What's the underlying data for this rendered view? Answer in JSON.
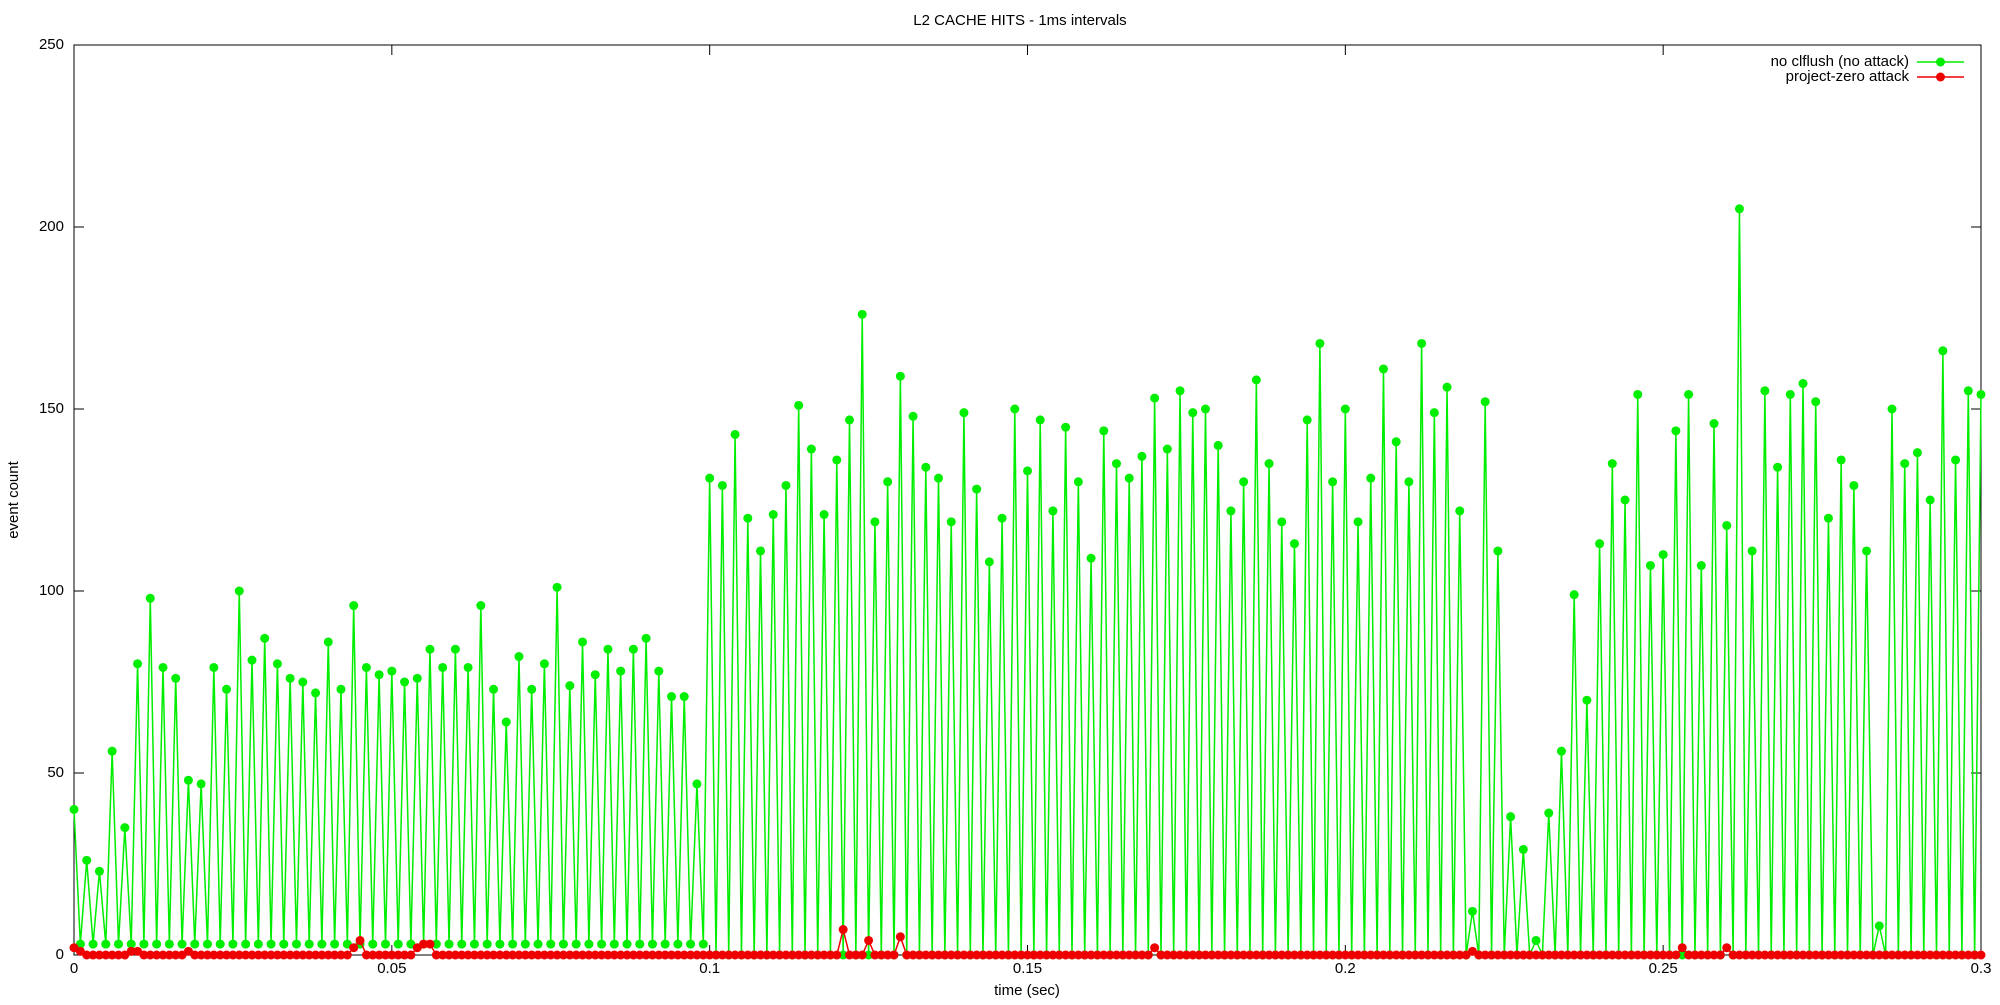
{
  "chart_data": {
    "type": "line",
    "title": "L2 CACHE HITS - 1ms intervals",
    "xlabel": "time (sec)",
    "ylabel": "event count",
    "xlim": [
      0,
      0.3
    ],
    "xticks": [
      0,
      0.05,
      0.1,
      0.15,
      0.2,
      0.25,
      0.3
    ],
    "ylim": [
      0,
      250
    ],
    "yticks": [
      0,
      50,
      100,
      150,
      200,
      250
    ],
    "legend": "top-right",
    "x": [
      0,
      0.001,
      0.002,
      0.003,
      0.004,
      0.005,
      0.006,
      0.007,
      0.008,
      0.009,
      0.01,
      0.011,
      0.012,
      0.013,
      0.014,
      0.015,
      0.016,
      0.017,
      0.018,
      0.019,
      0.02,
      0.021,
      0.022,
      0.023,
      0.024,
      0.025,
      0.026,
      0.027,
      0.028,
      0.029,
      0.03,
      0.031,
      0.032,
      0.033,
      0.034,
      0.035,
      0.036,
      0.037,
      0.038,
      0.039,
      0.04,
      0.041,
      0.042,
      0.043,
      0.044,
      0.045,
      0.046,
      0.047,
      0.048,
      0.049,
      0.05,
      0.051,
      0.052,
      0.053,
      0.054,
      0.055,
      0.056,
      0.057,
      0.058,
      0.059,
      0.06,
      0.061,
      0.062,
      0.063,
      0.064,
      0.065,
      0.066,
      0.067,
      0.068,
      0.069,
      0.07,
      0.071,
      0.072,
      0.073,
      0.074,
      0.075,
      0.076,
      0.077,
      0.078,
      0.079,
      0.08,
      0.081,
      0.082,
      0.083,
      0.084,
      0.085,
      0.086,
      0.087,
      0.088,
      0.089,
      0.09,
      0.091,
      0.092,
      0.093,
      0.094,
      0.095,
      0.096,
      0.097,
      0.098,
      0.099,
      0.1,
      0.101,
      0.102,
      0.103,
      0.104,
      0.105,
      0.106,
      0.107,
      0.108,
      0.109,
      0.11,
      0.111,
      0.112,
      0.113,
      0.114,
      0.115,
      0.116,
      0.117,
      0.118,
      0.119,
      0.12,
      0.121,
      0.122,
      0.123,
      0.124,
      0.125,
      0.126,
      0.127,
      0.128,
      0.129,
      0.13,
      0.131,
      0.132,
      0.133,
      0.134,
      0.135,
      0.136,
      0.137,
      0.138,
      0.139,
      0.14,
      0.141,
      0.142,
      0.143,
      0.144,
      0.145,
      0.146,
      0.147,
      0.148,
      0.149,
      0.15,
      0.151,
      0.152,
      0.153,
      0.154,
      0.155,
      0.156,
      0.157,
      0.158,
      0.159,
      0.16,
      0.161,
      0.162,
      0.163,
      0.164,
      0.165,
      0.166,
      0.167,
      0.168,
      0.169,
      0.17,
      0.171,
      0.172,
      0.173,
      0.174,
      0.175,
      0.176,
      0.177,
      0.178,
      0.179,
      0.18,
      0.181,
      0.182,
      0.183,
      0.184,
      0.185,
      0.186,
      0.187,
      0.188,
      0.189,
      0.19,
      0.191,
      0.192,
      0.193,
      0.194,
      0.195,
      0.196,
      0.197,
      0.198,
      0.199,
      0.2,
      0.201,
      0.202,
      0.203,
      0.204,
      0.205,
      0.206,
      0.207,
      0.208,
      0.209,
      0.21,
      0.211,
      0.212,
      0.213,
      0.214,
      0.215,
      0.216,
      0.217,
      0.218,
      0.219,
      0.22,
      0.221,
      0.222,
      0.223,
      0.224,
      0.225,
      0.226,
      0.227,
      0.228,
      0.229,
      0.23,
      0.231,
      0.232,
      0.233,
      0.234,
      0.235,
      0.236,
      0.237,
      0.238,
      0.239,
      0.24,
      0.241,
      0.242,
      0.243,
      0.244,
      0.245,
      0.246,
      0.247,
      0.248,
      0.249,
      0.25,
      0.251,
      0.252,
      0.253,
      0.254,
      0.255,
      0.256,
      0.257,
      0.258,
      0.259,
      0.26,
      0.261,
      0.262,
      0.263,
      0.264,
      0.265,
      0.266,
      0.267,
      0.268,
      0.269,
      0.27,
      0.271,
      0.272,
      0.273,
      0.274,
      0.275,
      0.276,
      0.277,
      0.278,
      0.279,
      0.28,
      0.281,
      0.282,
      0.283,
      0.284,
      0.285,
      0.286,
      0.287,
      0.288,
      0.289,
      0.29,
      0.291,
      0.292,
      0.293,
      0.294,
      0.295,
      0.296,
      0.297,
      0.298,
      0.299,
      0.3
    ],
    "series": [
      {
        "name": "no clflush (no attack)",
        "color": "#00ee00",
        "values": [
          40,
          3,
          26,
          3,
          23,
          3,
          56,
          3,
          35,
          3,
          80,
          3,
          98,
          3,
          79,
          3,
          76,
          3,
          48,
          3,
          47,
          3,
          79,
          3,
          73,
          3,
          100,
          3,
          81,
          3,
          87,
          3,
          80,
          3,
          76,
          3,
          75,
          3,
          72,
          3,
          86,
          3,
          73,
          3,
          96,
          3,
          79,
          3,
          77,
          3,
          78,
          3,
          75,
          3,
          76,
          3,
          84,
          3,
          79,
          3,
          84,
          3,
          79,
          3,
          96,
          3,
          73,
          3,
          64,
          3,
          82,
          3,
          73,
          3,
          80,
          3,
          101,
          3,
          74,
          3,
          86,
          3,
          77,
          3,
          84,
          3,
          78,
          3,
          84,
          3,
          87,
          3,
          78,
          3,
          71,
          3,
          71,
          3,
          47,
          3,
          131,
          0,
          129,
          0,
          143,
          0,
          120,
          0,
          111,
          0,
          121,
          0,
          129,
          0,
          151,
          0,
          139,
          0,
          121,
          0,
          136,
          0,
          147,
          0,
          176,
          0,
          119,
          0,
          130,
          0,
          159,
          0,
          148,
          0,
          134,
          0,
          131,
          0,
          119,
          0,
          149,
          0,
          128,
          0,
          108,
          0,
          120,
          0,
          150,
          0,
          133,
          0,
          147,
          0,
          122,
          0,
          145,
          0,
          130,
          0,
          109,
          0,
          144,
          0,
          135,
          0,
          131,
          0,
          137,
          0,
          153,
          0,
          139,
          0,
          155,
          0,
          149,
          0,
          150,
          0,
          140,
          0,
          122,
          0,
          130,
          0,
          158,
          0,
          135,
          0,
          119,
          0,
          113,
          0,
          147,
          0,
          168,
          0,
          130,
          0,
          150,
          0,
          119,
          0,
          131,
          0,
          161,
          0,
          141,
          0,
          130,
          0,
          168,
          0,
          149,
          0,
          156,
          0,
          122,
          0,
          12,
          0,
          152,
          0,
          111,
          0,
          38,
          0,
          29,
          0,
          4,
          0,
          39,
          0,
          56,
          0,
          99,
          0,
          70,
          0,
          113,
          0,
          135,
          0,
          125,
          0,
          154,
          0,
          107,
          0,
          110,
          0,
          144,
          0,
          154,
          0,
          107,
          0,
          146,
          0,
          118,
          0,
          205,
          0,
          111,
          0,
          155,
          0,
          134,
          0,
          154,
          0,
          157,
          0,
          152,
          0,
          120,
          0,
          136,
          0,
          129,
          0,
          111,
          0,
          8,
          0,
          150,
          0,
          135,
          0,
          138,
          0,
          125,
          0,
          166,
          0,
          136,
          0,
          155,
          0,
          154
        ]
      },
      {
        "name": "project-zero attack",
        "color": "#ee0000",
        "values": [
          2,
          1,
          0,
          0,
          0,
          0,
          0,
          0,
          0,
          1,
          1,
          0,
          0,
          0,
          0,
          0,
          0,
          0,
          1,
          0,
          0,
          0,
          0,
          0,
          0,
          0,
          0,
          0,
          0,
          0,
          0,
          0,
          0,
          0,
          0,
          0,
          0,
          0,
          0,
          0,
          0,
          0,
          0,
          0,
          2,
          4,
          0,
          0,
          0,
          0,
          0,
          0,
          0,
          0,
          2,
          3,
          3,
          0,
          0,
          0,
          0,
          0,
          0,
          0,
          0,
          0,
          0,
          0,
          0,
          0,
          0,
          0,
          0,
          0,
          0,
          0,
          0,
          0,
          0,
          0,
          0,
          0,
          0,
          0,
          0,
          0,
          0,
          0,
          0,
          0,
          0,
          0,
          0,
          0,
          0,
          0,
          0,
          0,
          0,
          0,
          0,
          0,
          0,
          0,
          0,
          0,
          0,
          0,
          0,
          0,
          0,
          0,
          0,
          0,
          0,
          0,
          0,
          0,
          0,
          0,
          0,
          7,
          0,
          0,
          0,
          4,
          0,
          0,
          0,
          0,
          5,
          0,
          0,
          0,
          0,
          0,
          0,
          0,
          0,
          0,
          0,
          0,
          0,
          0,
          0,
          0,
          0,
          0,
          0,
          0,
          0,
          0,
          0,
          0,
          0,
          0,
          0,
          0,
          0,
          0,
          0,
          0,
          0,
          0,
          0,
          0,
          0,
          0,
          0,
          0,
          2,
          0,
          0,
          0,
          0,
          0,
          0,
          0,
          0,
          0,
          0,
          0,
          0,
          0,
          0,
          0,
          0,
          0,
          0,
          0,
          0,
          0,
          0,
          0,
          0,
          0,
          0,
          0,
          0,
          0,
          0,
          0,
          0,
          0,
          0,
          0,
          0,
          0,
          0,
          0,
          0,
          0,
          0,
          0,
          0,
          0,
          0,
          0,
          0,
          0,
          1,
          0,
          0,
          0,
          0,
          0,
          0,
          0,
          0,
          0,
          0,
          0,
          0,
          0,
          0,
          0,
          0,
          0,
          0,
          0,
          0,
          0,
          0,
          0,
          0,
          0,
          0,
          0,
          0,
          0,
          0,
          0,
          0,
          2,
          0,
          0,
          0,
          0,
          0,
          0,
          2,
          0,
          0,
          0,
          0,
          0,
          0,
          0,
          0,
          0,
          0,
          0,
          0,
          0,
          0,
          0,
          0,
          0,
          0,
          0,
          0,
          0,
          0,
          0,
          0,
          0,
          0,
          0,
          0,
          0,
          0,
          0,
          0,
          0,
          0,
          0,
          0,
          0,
          0,
          0,
          0
        ]
      }
    ]
  }
}
